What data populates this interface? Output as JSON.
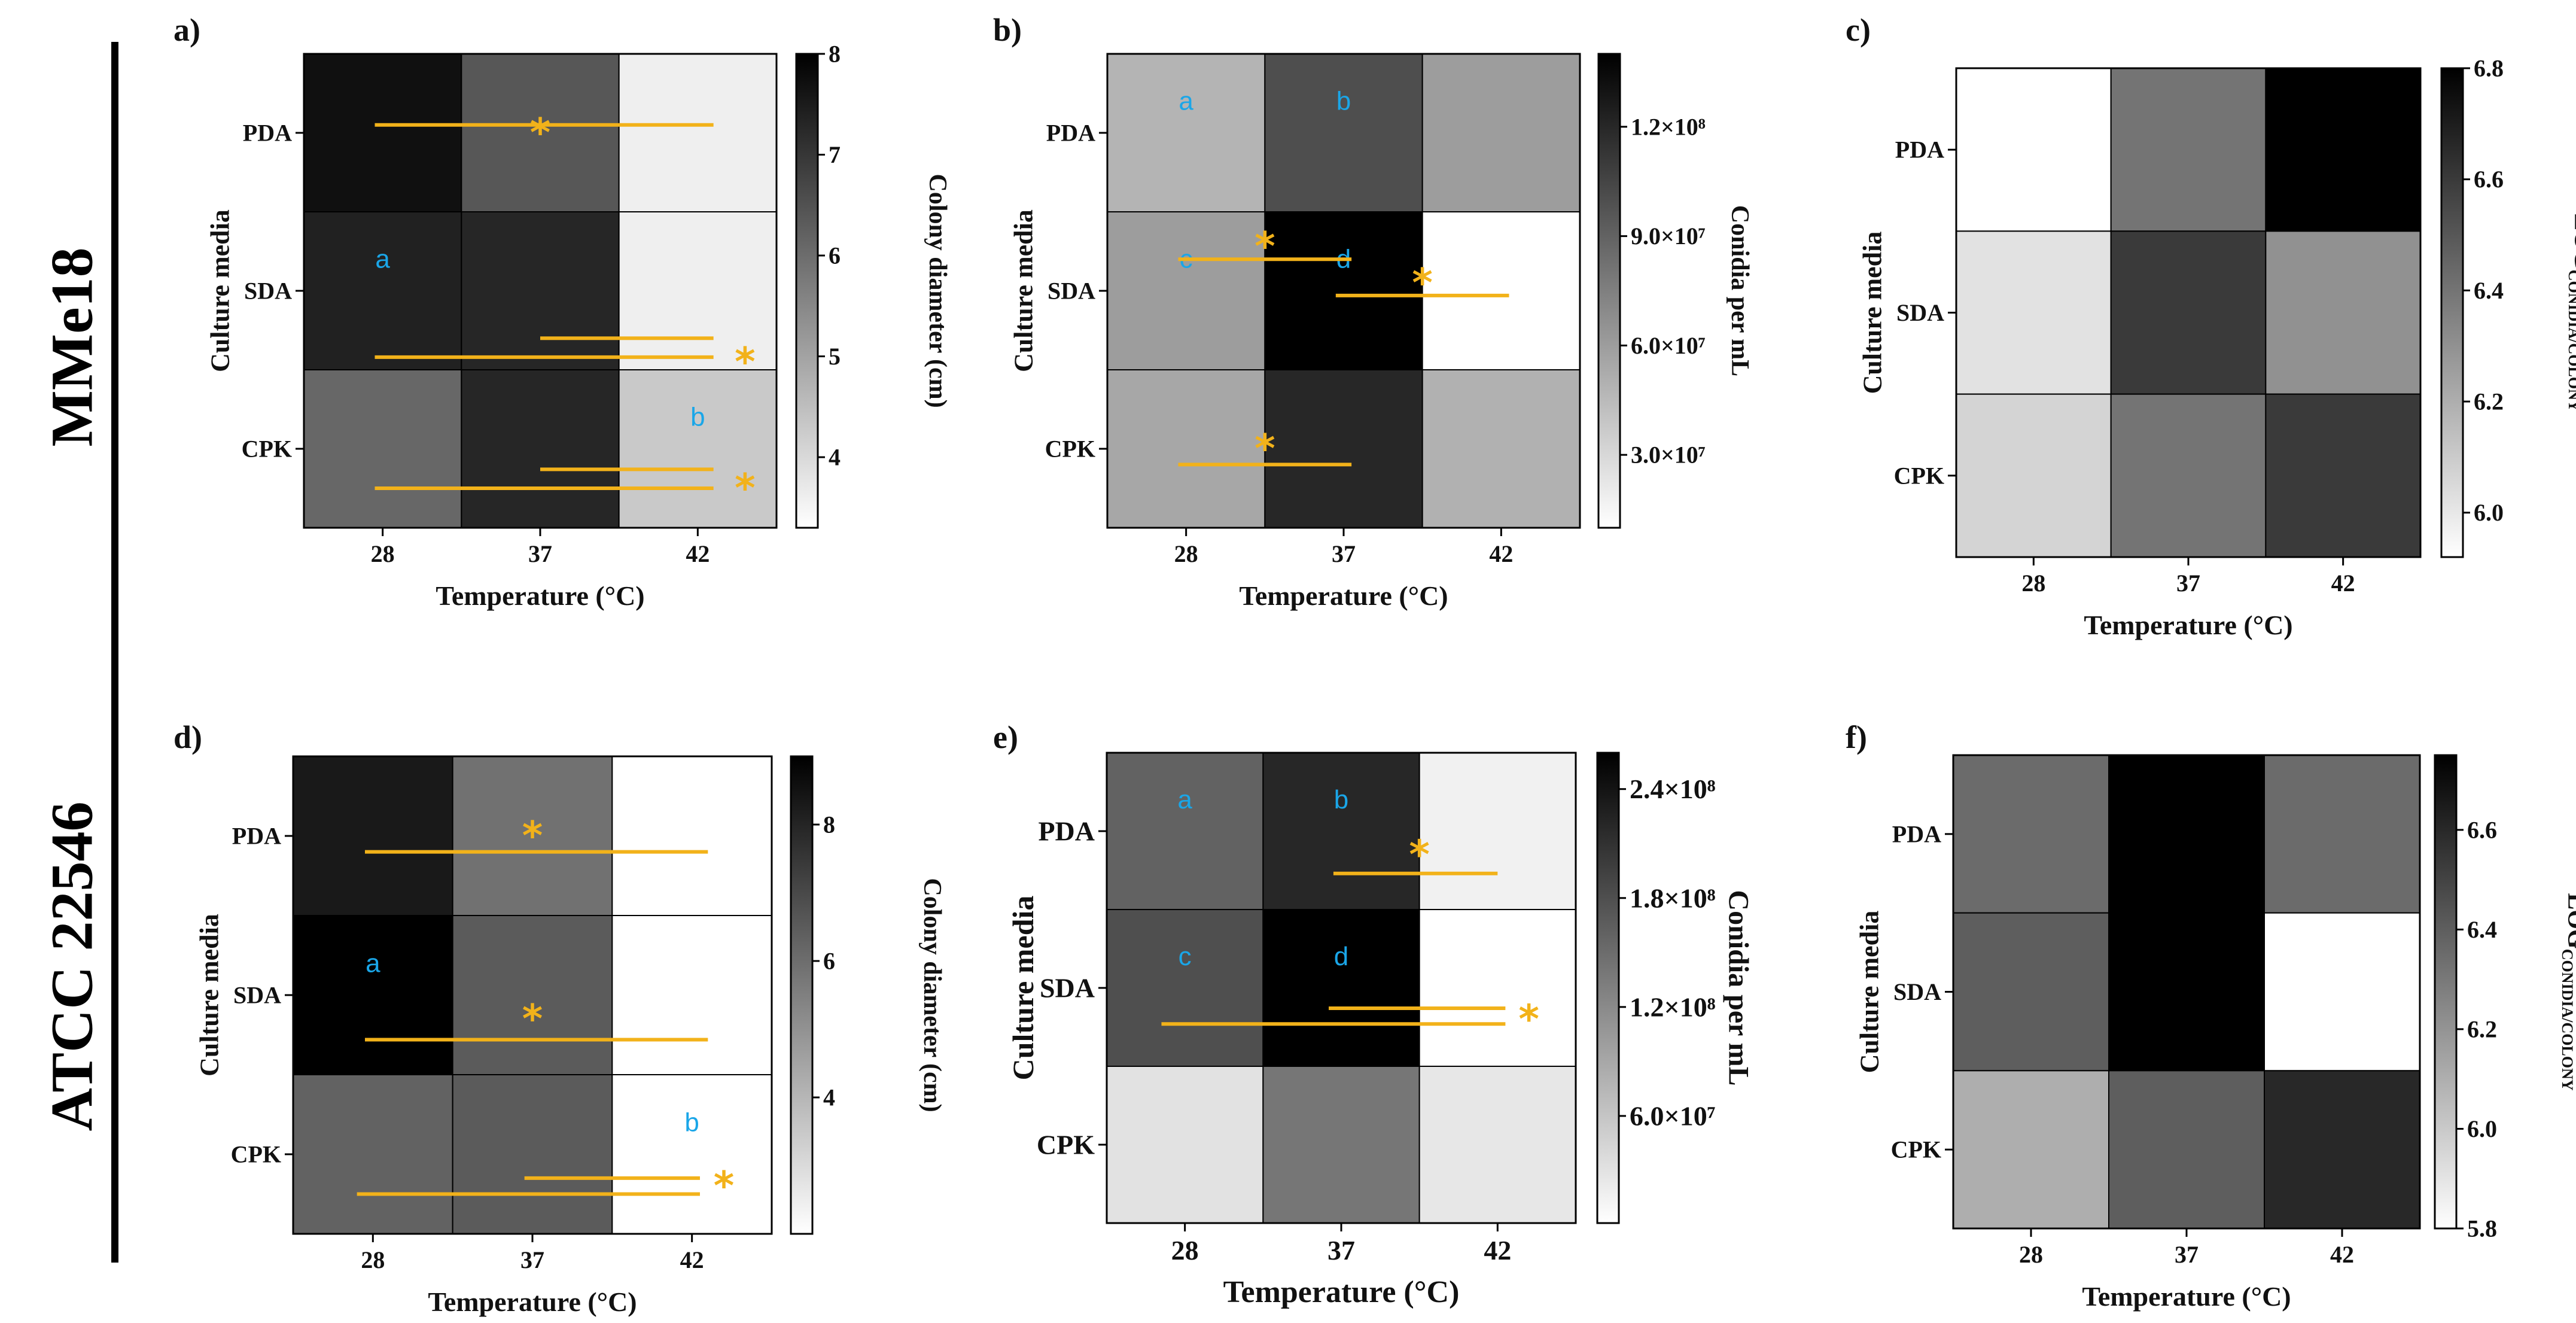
{
  "rows": [
    {
      "title": "MMe18"
    },
    {
      "title": "ATCC 22546"
    }
  ],
  "chart_data": [
    {
      "id": "a",
      "panel_label": "a)",
      "type": "heatmap",
      "xlabel": "Temperature (°C)",
      "ylabel": "Culture media",
      "x": [
        "28",
        "37",
        "42"
      ],
      "y": [
        "PDA",
        "SDA",
        "CPK"
      ],
      "values": [
        [
          7.7,
          6.4,
          3.6
        ],
        [
          7.4,
          7.3,
          3.6
        ],
        [
          6.1,
          7.3,
          4.3
        ]
      ],
      "colorbar": {
        "label": "Colony diameter (cm)",
        "range": [
          3.3,
          8.0
        ],
        "ticks": [
          "8",
          "7",
          "6",
          "5",
          "4"
        ]
      },
      "letters": [
        "a",
        "b"
      ],
      "significance": "*"
    },
    {
      "id": "b",
      "panel_label": "b)",
      "type": "heatmap",
      "xlabel": "Temperature (°C)",
      "ylabel": "Culture media",
      "x": [
        "28",
        "37",
        "42"
      ],
      "y": [
        "PDA",
        "SDA",
        "CPK"
      ],
      "values": [
        [
          48000000.0,
          100000000.0,
          60000000.0
        ],
        [
          60000000.0,
          140000000.0,
          10000000.0
        ],
        [
          55000000.0,
          120000000.0,
          50000000.0
        ]
      ],
      "colorbar": {
        "label": "Conidia per mL",
        "range": [
          10000000.0,
          140000000.0
        ],
        "ticks": [
          "1.2×10⁸",
          "9.0×10⁷",
          "6.0×10⁷",
          "3.0×10⁷"
        ]
      },
      "letters": [
        "a",
        "b",
        "c",
        "d"
      ],
      "significance": "*"
    },
    {
      "id": "c",
      "panel_label": "c)",
      "type": "heatmap",
      "xlabel": "Temperature (°C)",
      "ylabel": "Culture media",
      "x": [
        "28",
        "37",
        "42"
      ],
      "y": [
        "PDA",
        "SDA",
        "CPK"
      ],
      "values": [
        [
          5.92,
          6.4,
          6.8
        ],
        [
          6.02,
          6.6,
          6.3
        ],
        [
          6.07,
          6.4,
          6.6
        ]
      ],
      "colorbar": {
        "label_main": "LOG",
        "label_sub": "CONIDIA/COLONY",
        "range": [
          5.92,
          6.8
        ],
        "ticks": [
          "6.8",
          "6.6",
          "6.4",
          "6.2",
          "6.0"
        ]
      }
    },
    {
      "id": "d",
      "panel_label": "d)",
      "type": "heatmap",
      "xlabel": "Temperature (°C)",
      "ylabel": "Culture media",
      "x": [
        "28",
        "37",
        "42"
      ],
      "y": [
        "PDA",
        "SDA",
        "CPK"
      ],
      "values": [
        [
          8.3,
          5.9,
          2.0
        ],
        [
          9.0,
          6.5,
          2.0
        ],
        [
          6.3,
          6.5,
          2.0
        ]
      ],
      "colorbar": {
        "label": "Colony diameter (cm)",
        "range": [
          2.0,
          9.0
        ],
        "ticks": [
          "8",
          "6",
          "4"
        ]
      },
      "letters": [
        "a",
        "b"
      ],
      "significance": "*"
    },
    {
      "id": "e",
      "panel_label": "e)",
      "type": "heatmap",
      "xlabel": "Temperature (°C)",
      "ylabel": "Culture media",
      "x": [
        "28",
        "37",
        "42"
      ],
      "y": [
        "PDA",
        "SDA",
        "CPK"
      ],
      "values": [
        [
          160000000.0,
          220000000.0,
          15000000.0
        ],
        [
          180000000.0,
          260000000.0,
          1000000.0
        ],
        [
          30000000.0,
          140000000.0,
          25000000.0
        ]
      ],
      "colorbar": {
        "label": "Conidia per mL",
        "range": [
          1000000.0,
          260000000.0
        ],
        "ticks": [
          "2.4×10⁸",
          "1.8×10⁸",
          "1.2×10⁸",
          "6.0×10⁷"
        ]
      },
      "letters": [
        "a",
        "b",
        "c",
        "d"
      ],
      "significance": "*"
    },
    {
      "id": "f",
      "panel_label": "f)",
      "type": "heatmap",
      "xlabel": "Temperature (°C)",
      "ylabel": "Culture media",
      "x": [
        "28",
        "37",
        "42"
      ],
      "y": [
        "PDA",
        "SDA",
        "CPK"
      ],
      "values": [
        [
          6.35,
          6.75,
          6.35
        ],
        [
          6.4,
          6.75,
          5.8
        ],
        [
          6.1,
          6.4,
          6.6
        ]
      ],
      "colorbar": {
        "label_main": "LOG",
        "label_sub": "CONIDIA/COLONY",
        "range": [
          5.8,
          6.75
        ],
        "ticks": [
          "6.6",
          "6.4",
          "6.2",
          "6.0",
          "5.8"
        ]
      }
    }
  ]
}
